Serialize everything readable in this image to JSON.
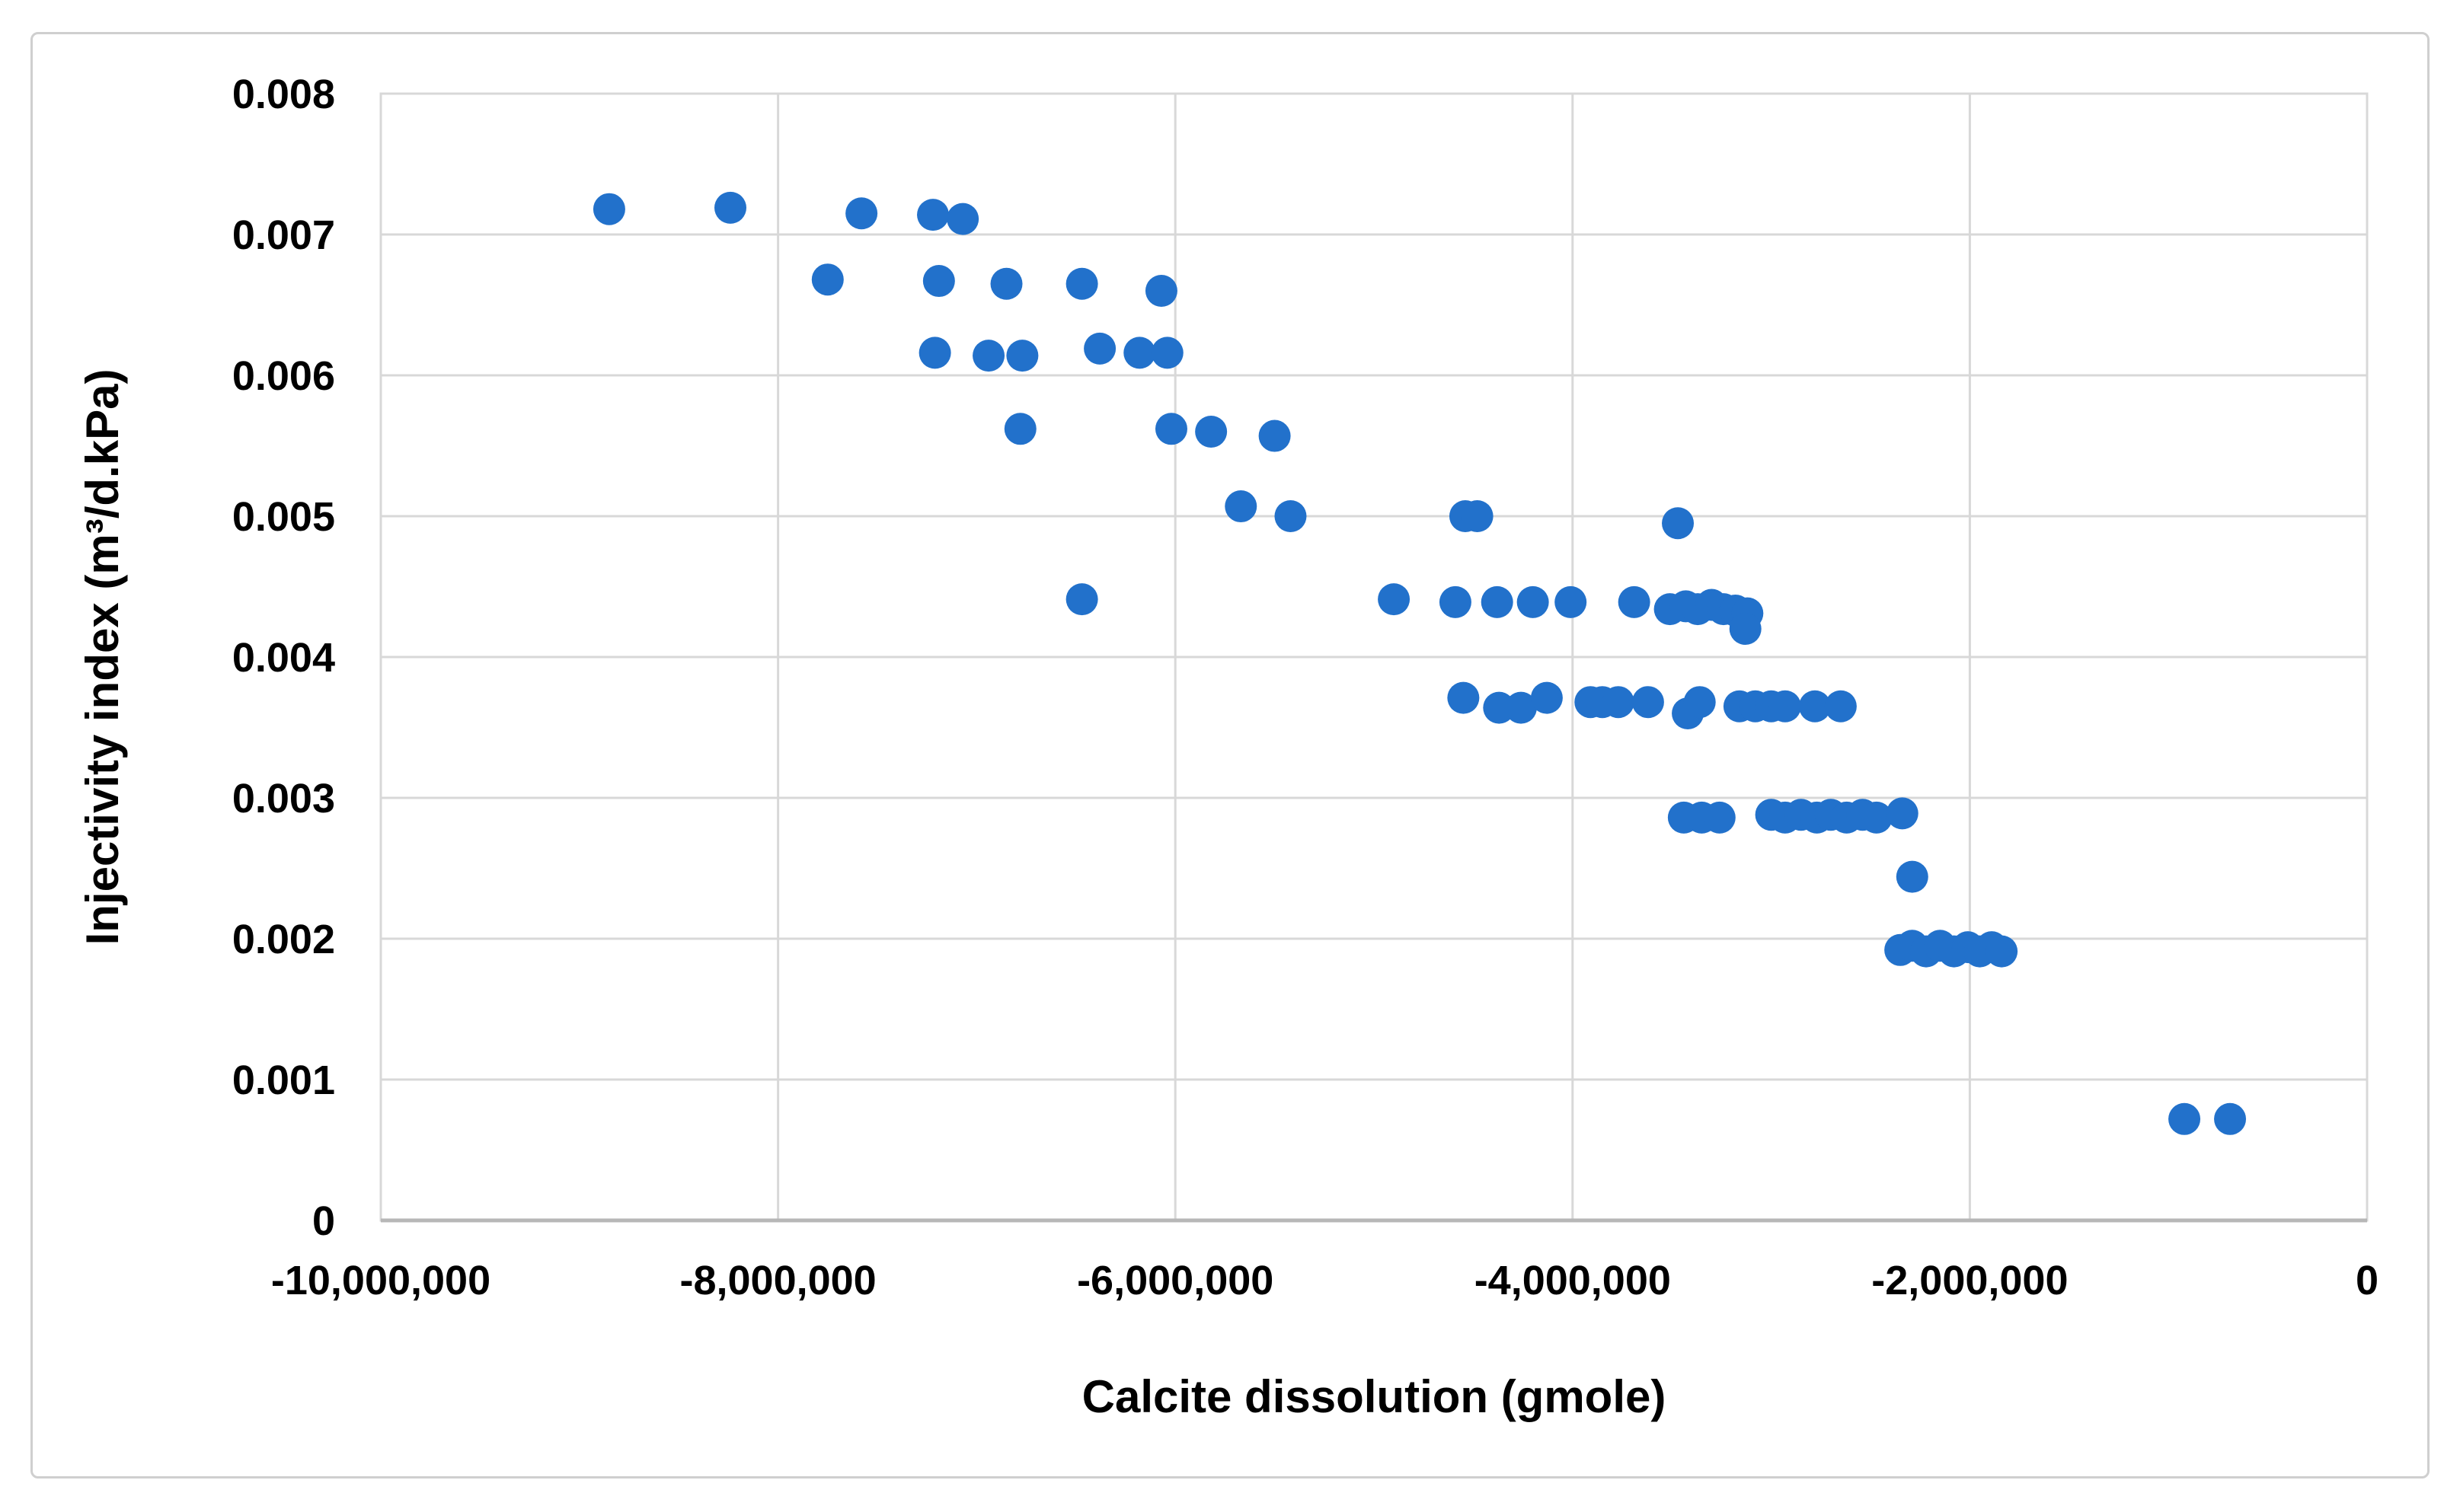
{
  "chart": {
    "x_axis_title": "Calcite dissolution (gmole)",
    "y_axis_title": "Injectivity index (m³/d.kPa)"
  },
  "chart_data": {
    "type": "scatter",
    "title": "",
    "xlabel": "Calcite dissolution (gmole)",
    "ylabel": "Injectivity index (m³/d.kPa)",
    "xlim": [
      -10000000,
      0
    ],
    "ylim": [
      0,
      0.008
    ],
    "grid": true,
    "legend": "none",
    "marker_color": "#2271cb",
    "gridline_color": "#d8d8d8",
    "axis_line_color": "#b7b7b7",
    "x_ticks": [
      -10000000,
      -8000000,
      -6000000,
      -4000000,
      -2000000,
      0
    ],
    "x_tick_labels": [
      "-10,000,000",
      "-8,000,000",
      "-6,000,000",
      "-4,000,000",
      "-2,000,000",
      "0"
    ],
    "y_ticks": [
      0,
      0.001,
      0.002,
      0.003,
      0.004,
      0.005,
      0.006,
      0.007,
      0.008
    ],
    "y_tick_labels": [
      "0",
      "0.001",
      "0.002",
      "0.003",
      "0.004",
      "0.005",
      "0.006",
      "0.007",
      "0.008"
    ],
    "points": [
      [
        -8850000,
        0.00718
      ],
      [
        -8240000,
        0.00719
      ],
      [
        -7580000,
        0.00715
      ],
      [
        -7220000,
        0.00714
      ],
      [
        -7070000,
        0.00711
      ],
      [
        -7750000,
        0.00668
      ],
      [
        -7190000,
        0.00667
      ],
      [
        -6850000,
        0.00665
      ],
      [
        -6470000,
        0.00665
      ],
      [
        -6070000,
        0.0066
      ],
      [
        -7210000,
        0.00616
      ],
      [
        -6940000,
        0.00614
      ],
      [
        -6770000,
        0.00614
      ],
      [
        -6380000,
        0.00619
      ],
      [
        -6180000,
        0.00616
      ],
      [
        -6040000,
        0.00616
      ],
      [
        -6780000,
        0.00562
      ],
      [
        -6020000,
        0.00562
      ],
      [
        -5820000,
        0.0056
      ],
      [
        -5500000,
        0.00557
      ],
      [
        -5670000,
        0.00507
      ],
      [
        -5420000,
        0.005
      ],
      [
        -4540000,
        0.005
      ],
      [
        -4480000,
        0.005
      ],
      [
        -3470000,
        0.00495
      ],
      [
        -6470000,
        0.00441
      ],
      [
        -4900000,
        0.00441
      ],
      [
        -4590000,
        0.00439
      ],
      [
        -4380000,
        0.00439
      ],
      [
        -4200000,
        0.00439
      ],
      [
        -4010000,
        0.00439
      ],
      [
        -3690000,
        0.00439
      ],
      [
        -3510000,
        0.00434
      ],
      [
        -3430000,
        0.00436
      ],
      [
        -3370000,
        0.00434
      ],
      [
        -3300000,
        0.00437
      ],
      [
        -3240000,
        0.00434
      ],
      [
        -3180000,
        0.00433
      ],
      [
        -3120000,
        0.00431
      ],
      [
        -3130000,
        0.0042
      ],
      [
        -4550000,
        0.00371
      ],
      [
        -4370000,
        0.00364
      ],
      [
        -4260000,
        0.00364
      ],
      [
        -4130000,
        0.00371
      ],
      [
        -3910000,
        0.00368
      ],
      [
        -3850000,
        0.00368
      ],
      [
        -3770000,
        0.00368
      ],
      [
        -3620000,
        0.00368
      ],
      [
        -3420000,
        0.0036
      ],
      [
        -3360000,
        0.00368
      ],
      [
        -3160000,
        0.00365
      ],
      [
        -3080000,
        0.00365
      ],
      [
        -3000000,
        0.00365
      ],
      [
        -2930000,
        0.00365
      ],
      [
        -2780000,
        0.00365
      ],
      [
        -2650000,
        0.00365
      ],
      [
        -3440000,
        0.00286
      ],
      [
        -3350000,
        0.00286
      ],
      [
        -3260000,
        0.00286
      ],
      [
        -3000000,
        0.00288
      ],
      [
        -2930000,
        0.00286
      ],
      [
        -2850000,
        0.00288
      ],
      [
        -2770000,
        0.00286
      ],
      [
        -2700000,
        0.00288
      ],
      [
        -2620000,
        0.00286
      ],
      [
        -2540000,
        0.00288
      ],
      [
        -2470000,
        0.00286
      ],
      [
        -2340000,
        0.00289
      ],
      [
        -2290000,
        0.00244
      ],
      [
        -2350000,
        0.00192
      ],
      [
        -2290000,
        0.00195
      ],
      [
        -2220000,
        0.00191
      ],
      [
        -2150000,
        0.00195
      ],
      [
        -2080000,
        0.00191
      ],
      [
        -2010000,
        0.00194
      ],
      [
        -1950000,
        0.00191
      ],
      [
        -1890000,
        0.00194
      ],
      [
        -1840000,
        0.00191
      ],
      [
        -920000,
        0.00072
      ],
      [
        -690000,
        0.00072
      ]
    ]
  }
}
